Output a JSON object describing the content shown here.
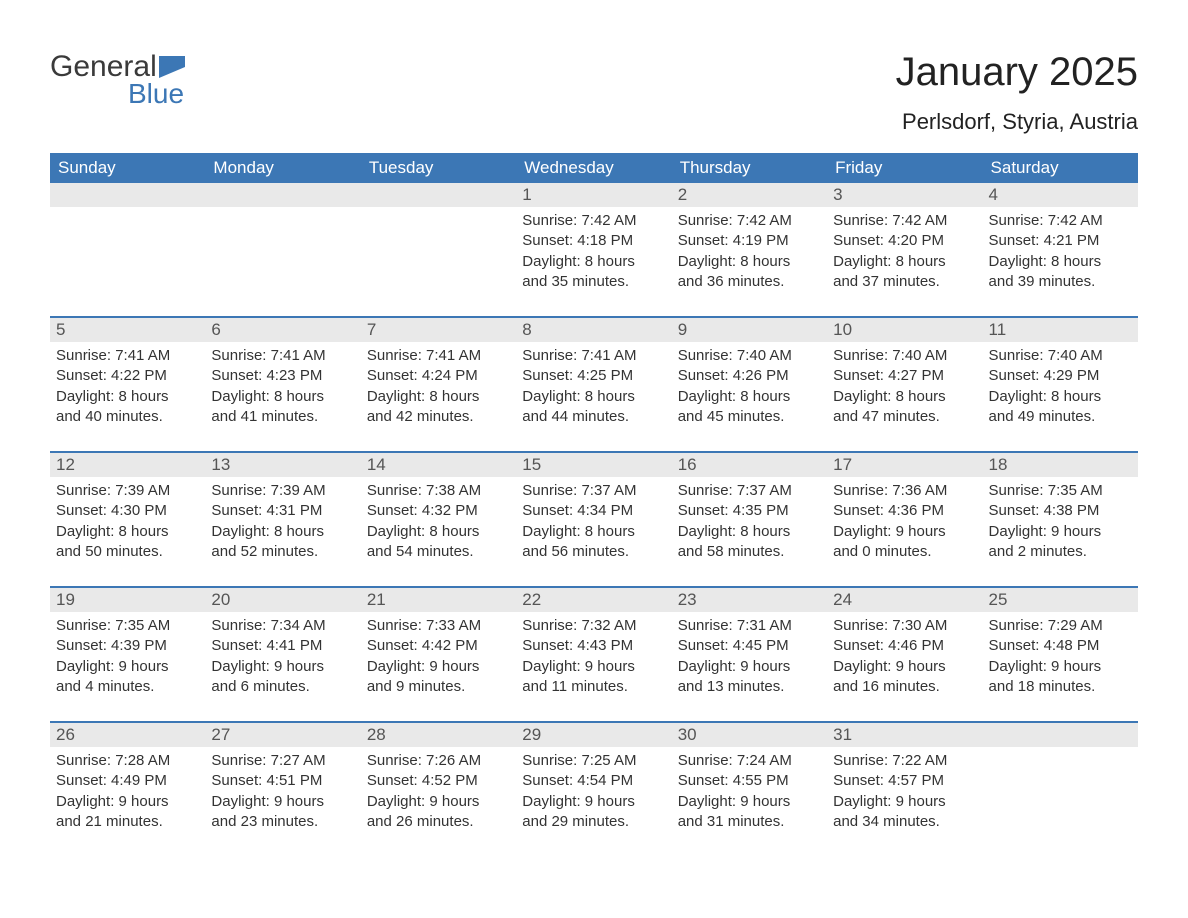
{
  "logo": {
    "general": "General",
    "blue": "Blue",
    "flag_color": "#3c77b5"
  },
  "title": "January 2025",
  "location": "Perlsdorf, Styria, Austria",
  "colors": {
    "header_bg": "#3c77b5",
    "header_text": "#ffffff",
    "daynum_bg": "#e9e9e9",
    "daynum_text": "#555555",
    "body_text": "#333333",
    "week_sep": "#3c77b5",
    "page_bg": "#ffffff"
  },
  "fonts": {
    "title_size_pt": 30,
    "location_size_pt": 17,
    "header_size_pt": 13,
    "daynum_size_pt": 13,
    "detail_size_pt": 11
  },
  "day_names": [
    "Sunday",
    "Monday",
    "Tuesday",
    "Wednesday",
    "Thursday",
    "Friday",
    "Saturday"
  ],
  "weeks": [
    [
      null,
      null,
      null,
      {
        "day": "1",
        "sunrise": "Sunrise: 7:42 AM",
        "sunset": "Sunset: 4:18 PM",
        "dl1": "Daylight: 8 hours",
        "dl2": "and 35 minutes."
      },
      {
        "day": "2",
        "sunrise": "Sunrise: 7:42 AM",
        "sunset": "Sunset: 4:19 PM",
        "dl1": "Daylight: 8 hours",
        "dl2": "and 36 minutes."
      },
      {
        "day": "3",
        "sunrise": "Sunrise: 7:42 AM",
        "sunset": "Sunset: 4:20 PM",
        "dl1": "Daylight: 8 hours",
        "dl2": "and 37 minutes."
      },
      {
        "day": "4",
        "sunrise": "Sunrise: 7:42 AM",
        "sunset": "Sunset: 4:21 PM",
        "dl1": "Daylight: 8 hours",
        "dl2": "and 39 minutes."
      }
    ],
    [
      {
        "day": "5",
        "sunrise": "Sunrise: 7:41 AM",
        "sunset": "Sunset: 4:22 PM",
        "dl1": "Daylight: 8 hours",
        "dl2": "and 40 minutes."
      },
      {
        "day": "6",
        "sunrise": "Sunrise: 7:41 AM",
        "sunset": "Sunset: 4:23 PM",
        "dl1": "Daylight: 8 hours",
        "dl2": "and 41 minutes."
      },
      {
        "day": "7",
        "sunrise": "Sunrise: 7:41 AM",
        "sunset": "Sunset: 4:24 PM",
        "dl1": "Daylight: 8 hours",
        "dl2": "and 42 minutes."
      },
      {
        "day": "8",
        "sunrise": "Sunrise: 7:41 AM",
        "sunset": "Sunset: 4:25 PM",
        "dl1": "Daylight: 8 hours",
        "dl2": "and 44 minutes."
      },
      {
        "day": "9",
        "sunrise": "Sunrise: 7:40 AM",
        "sunset": "Sunset: 4:26 PM",
        "dl1": "Daylight: 8 hours",
        "dl2": "and 45 minutes."
      },
      {
        "day": "10",
        "sunrise": "Sunrise: 7:40 AM",
        "sunset": "Sunset: 4:27 PM",
        "dl1": "Daylight: 8 hours",
        "dl2": "and 47 minutes."
      },
      {
        "day": "11",
        "sunrise": "Sunrise: 7:40 AM",
        "sunset": "Sunset: 4:29 PM",
        "dl1": "Daylight: 8 hours",
        "dl2": "and 49 minutes."
      }
    ],
    [
      {
        "day": "12",
        "sunrise": "Sunrise: 7:39 AM",
        "sunset": "Sunset: 4:30 PM",
        "dl1": "Daylight: 8 hours",
        "dl2": "and 50 minutes."
      },
      {
        "day": "13",
        "sunrise": "Sunrise: 7:39 AM",
        "sunset": "Sunset: 4:31 PM",
        "dl1": "Daylight: 8 hours",
        "dl2": "and 52 minutes."
      },
      {
        "day": "14",
        "sunrise": "Sunrise: 7:38 AM",
        "sunset": "Sunset: 4:32 PM",
        "dl1": "Daylight: 8 hours",
        "dl2": "and 54 minutes."
      },
      {
        "day": "15",
        "sunrise": "Sunrise: 7:37 AM",
        "sunset": "Sunset: 4:34 PM",
        "dl1": "Daylight: 8 hours",
        "dl2": "and 56 minutes."
      },
      {
        "day": "16",
        "sunrise": "Sunrise: 7:37 AM",
        "sunset": "Sunset: 4:35 PM",
        "dl1": "Daylight: 8 hours",
        "dl2": "and 58 minutes."
      },
      {
        "day": "17",
        "sunrise": "Sunrise: 7:36 AM",
        "sunset": "Sunset: 4:36 PM",
        "dl1": "Daylight: 9 hours",
        "dl2": "and 0 minutes."
      },
      {
        "day": "18",
        "sunrise": "Sunrise: 7:35 AM",
        "sunset": "Sunset: 4:38 PM",
        "dl1": "Daylight: 9 hours",
        "dl2": "and 2 minutes."
      }
    ],
    [
      {
        "day": "19",
        "sunrise": "Sunrise: 7:35 AM",
        "sunset": "Sunset: 4:39 PM",
        "dl1": "Daylight: 9 hours",
        "dl2": "and 4 minutes."
      },
      {
        "day": "20",
        "sunrise": "Sunrise: 7:34 AM",
        "sunset": "Sunset: 4:41 PM",
        "dl1": "Daylight: 9 hours",
        "dl2": "and 6 minutes."
      },
      {
        "day": "21",
        "sunrise": "Sunrise: 7:33 AM",
        "sunset": "Sunset: 4:42 PM",
        "dl1": "Daylight: 9 hours",
        "dl2": "and 9 minutes."
      },
      {
        "day": "22",
        "sunrise": "Sunrise: 7:32 AM",
        "sunset": "Sunset: 4:43 PM",
        "dl1": "Daylight: 9 hours",
        "dl2": "and 11 minutes."
      },
      {
        "day": "23",
        "sunrise": "Sunrise: 7:31 AM",
        "sunset": "Sunset: 4:45 PM",
        "dl1": "Daylight: 9 hours",
        "dl2": "and 13 minutes."
      },
      {
        "day": "24",
        "sunrise": "Sunrise: 7:30 AM",
        "sunset": "Sunset: 4:46 PM",
        "dl1": "Daylight: 9 hours",
        "dl2": "and 16 minutes."
      },
      {
        "day": "25",
        "sunrise": "Sunrise: 7:29 AM",
        "sunset": "Sunset: 4:48 PM",
        "dl1": "Daylight: 9 hours",
        "dl2": "and 18 minutes."
      }
    ],
    [
      {
        "day": "26",
        "sunrise": "Sunrise: 7:28 AM",
        "sunset": "Sunset: 4:49 PM",
        "dl1": "Daylight: 9 hours",
        "dl2": "and 21 minutes."
      },
      {
        "day": "27",
        "sunrise": "Sunrise: 7:27 AM",
        "sunset": "Sunset: 4:51 PM",
        "dl1": "Daylight: 9 hours",
        "dl2": "and 23 minutes."
      },
      {
        "day": "28",
        "sunrise": "Sunrise: 7:26 AM",
        "sunset": "Sunset: 4:52 PM",
        "dl1": "Daylight: 9 hours",
        "dl2": "and 26 minutes."
      },
      {
        "day": "29",
        "sunrise": "Sunrise: 7:25 AM",
        "sunset": "Sunset: 4:54 PM",
        "dl1": "Daylight: 9 hours",
        "dl2": "and 29 minutes."
      },
      {
        "day": "30",
        "sunrise": "Sunrise: 7:24 AM",
        "sunset": "Sunset: 4:55 PM",
        "dl1": "Daylight: 9 hours",
        "dl2": "and 31 minutes."
      },
      {
        "day": "31",
        "sunrise": "Sunrise: 7:22 AM",
        "sunset": "Sunset: 4:57 PM",
        "dl1": "Daylight: 9 hours",
        "dl2": "and 34 minutes."
      },
      null
    ]
  ]
}
